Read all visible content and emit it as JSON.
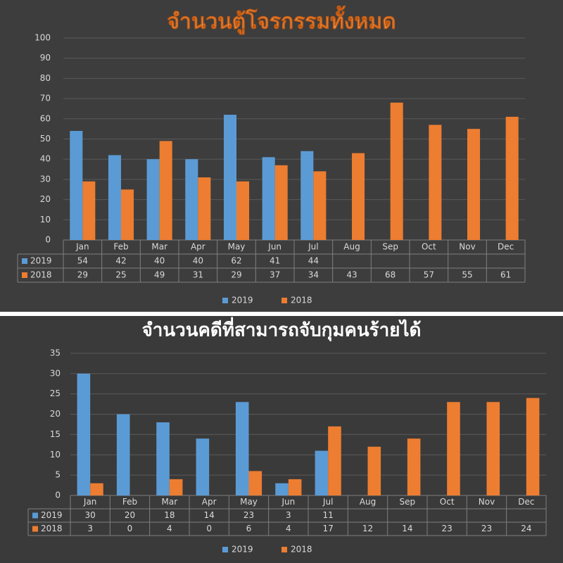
{
  "chart_data": [
    {
      "type": "bar",
      "title": "จำนวนตู้โจรกรรมทั้งหมด",
      "categories": [
        "Jan",
        "Feb",
        "Mar",
        "Apr",
        "May",
        "Jun",
        "Jul",
        "Aug",
        "Sep",
        "Oct",
        "Nov",
        "Dec"
      ],
      "series": [
        {
          "name": "2019",
          "color": "#5b9bd5",
          "values": [
            54,
            42,
            40,
            40,
            62,
            41,
            44,
            null,
            null,
            null,
            null,
            null
          ]
        },
        {
          "name": "2018",
          "color": "#ed7d31",
          "values": [
            29,
            25,
            49,
            31,
            29,
            37,
            34,
            43,
            68,
            57,
            55,
            61
          ]
        }
      ],
      "ylim": [
        0,
        100
      ],
      "yticks": [
        0,
        10,
        20,
        30,
        40,
        50,
        60,
        70,
        80,
        90,
        100
      ],
      "grid": true,
      "legend": "bottom",
      "data_table": true
    },
    {
      "type": "bar",
      "title": "จำนวนคดีที่สามารถจับกุมคนร้ายได้",
      "categories": [
        "Jan",
        "Feb",
        "Mar",
        "Apr",
        "May",
        "Jun",
        "Jul",
        "Aug",
        "Sep",
        "Oct",
        "Nov",
        "Dec"
      ],
      "series": [
        {
          "name": "2019",
          "color": "#5b9bd5",
          "values": [
            30,
            20,
            18,
            14,
            23,
            3,
            11,
            null,
            null,
            null,
            null,
            null
          ]
        },
        {
          "name": "2018",
          "color": "#ed7d31",
          "values": [
            3,
            0,
            4,
            0,
            6,
            4,
            17,
            12,
            14,
            23,
            23,
            24
          ]
        }
      ],
      "ylim": [
        0,
        35
      ],
      "yticks": [
        0,
        5,
        10,
        15,
        20,
        25,
        30,
        35
      ],
      "grid": true,
      "legend": "bottom",
      "data_table": true
    }
  ]
}
